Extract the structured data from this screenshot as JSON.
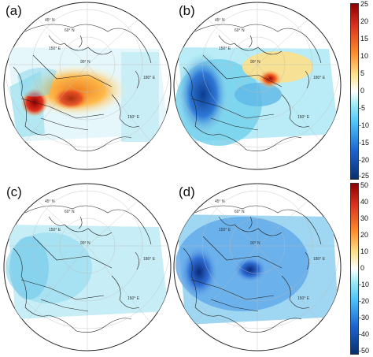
{
  "panels": [
    {
      "label": "(a)",
      "map_labels": {
        "lat1": "45° N",
        "lat2": "60° N",
        "lon1": "150° E",
        "lon2": "90° N",
        "lon3": "180° E",
        "lon4": "150° E"
      }
    },
    {
      "label": "(b)",
      "map_labels": {
        "lat1": "45° N",
        "lat2": "60° N",
        "lon1": "150° E",
        "lon2": "90° N",
        "lon3": "180° E",
        "lon4": "150° E"
      }
    },
    {
      "label": "(c)",
      "map_labels": {
        "lat1": "45° N",
        "lat2": "60° N",
        "lon1": "150° E",
        "lon2": "90° N",
        "lon3": "180° E",
        "lon4": "150° E"
      }
    },
    {
      "label": "(d)",
      "map_labels": {
        "lat1": "45° N",
        "lat2": "60° N",
        "lon1": "150° E",
        "lon2": "90° N",
        "lon3": "180° E",
        "lon4": "150° E"
      }
    }
  ],
  "colorbars": [
    {
      "ticks": [
        "25",
        "20",
        "15",
        "10",
        "5",
        "0",
        "-5",
        "-10",
        "-15",
        "-20",
        "-25"
      ]
    },
    {
      "ticks": [
        "50",
        "40",
        "30",
        "20",
        "10",
        "0",
        "-10",
        "-20",
        "-30",
        "-40",
        "-50"
      ]
    }
  ],
  "colors": {
    "scale": [
      "#8b0000",
      "#d7301f",
      "#fc8d2f",
      "#fee08b",
      "#ffffff",
      "#9ee8f4",
      "#4fc3f7",
      "#1e62d0",
      "#08306b"
    ]
  }
}
